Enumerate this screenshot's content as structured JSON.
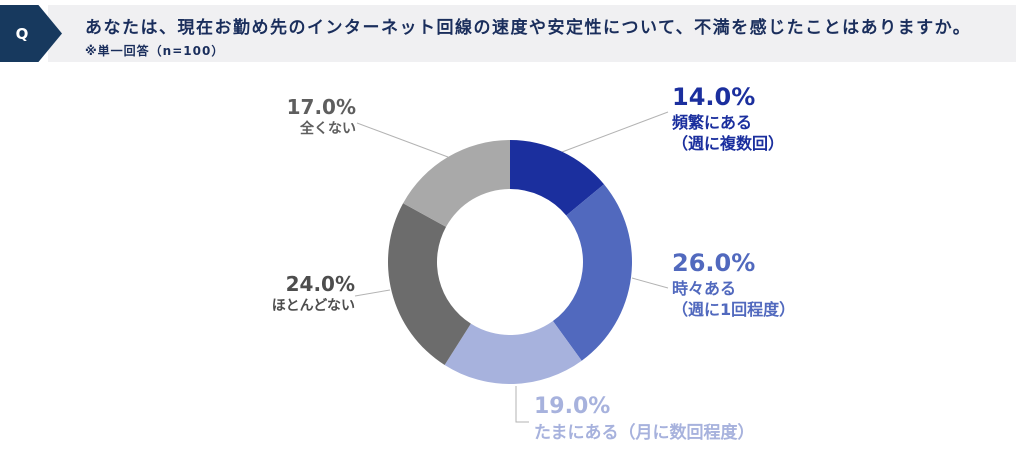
{
  "header": {
    "q_label": "Q",
    "question": "あなたは、現在お勤め先のインターネット回線の速度や安定性について、不満を感じたことはありますか。",
    "note": "※単一回答（n=100）"
  },
  "colors": {
    "badge_navy": "#17395E",
    "header_bar_bg": "#F0F0F2",
    "header_text": "#1A2E5C",
    "leader_line": "#B3B3B3",
    "background": "#FFFFFF"
  },
  "chart_data": {
    "type": "pie",
    "subtype": "donut",
    "title": "あなたは、現在お勤め先のインターネット回線の速度や安定性について、不満を感じたことはありますか。",
    "note": "※単一回答（n=100）",
    "n": 100,
    "unit": "%",
    "start_angle_deg": 0,
    "direction": "clockwise",
    "legend_position": "callout-labels",
    "segments": [
      {
        "label": "頻繁にある（週に複数回）",
        "value": 14.0,
        "display_pct": "14.0%",
        "display_name": "頻繁にある",
        "display_name2": "（週に複数回）",
        "color": "#1B2F9E",
        "text_color": "#1B2F9E"
      },
      {
        "label": "時々ある（週に1回程度）",
        "value": 26.0,
        "display_pct": "26.0%",
        "display_name": "時々ある",
        "display_name2": "（週に1回程度）",
        "color": "#5169BE",
        "text_color": "#5169BE"
      },
      {
        "label": "たまにある（月に数回程度）",
        "value": 19.0,
        "display_pct": "19.0%",
        "display_name": "たまにある（月に数回程度）",
        "display_name2": "",
        "color": "#A7B2DD",
        "text_color": "#A7B2DD"
      },
      {
        "label": "ほとんどない",
        "value": 24.0,
        "display_pct": "24.0%",
        "display_name": "ほとんどない",
        "display_name2": "",
        "color": "#6C6C6C",
        "text_color": "#4D4D4D"
      },
      {
        "label": "全くない",
        "value": 17.0,
        "display_pct": "17.0%",
        "display_name": "全くない",
        "display_name2": "",
        "color": "#A9A9A9",
        "text_color": "#5E5E5E"
      }
    ]
  }
}
